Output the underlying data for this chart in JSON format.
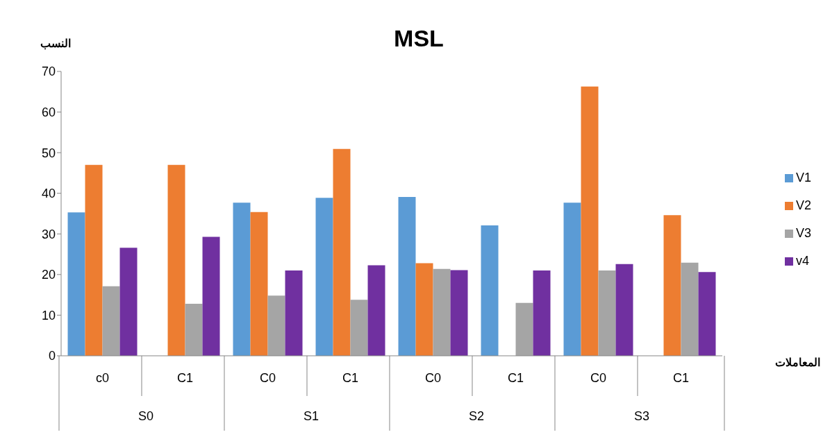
{
  "chart_data": {
    "type": "bar",
    "title": "MSL",
    "ylabel": "النسب",
    "xlabel": "المعاملات",
    "categories": [
      "c0",
      "C1",
      "C0",
      "C1",
      "C0",
      "C1",
      "C0",
      "C1"
    ],
    "annotations": [
      "S0",
      "S1",
      "S2",
      "S3"
    ],
    "series": [
      {
        "name": "V1",
        "color": "#5b9bd5",
        "values": [
          35.3,
          null,
          37.7,
          38.9,
          39.1,
          32.1,
          37.7,
          null
        ]
      },
      {
        "name": "V2",
        "color": "#ed7d31",
        "values": [
          47,
          47,
          35.4,
          50.9,
          22.8,
          null,
          66.3,
          34.6
        ]
      },
      {
        "name": "V3",
        "color": "#a5a5a5",
        "values": [
          17.1,
          12.8,
          14.8,
          13.8,
          21.4,
          13,
          21,
          22.9
        ]
      },
      {
        "name": "v4",
        "color": "#7030a0",
        "values": [
          26.6,
          29.3,
          21,
          22.3,
          21.1,
          21,
          22.6,
          20.6
        ]
      }
    ],
    "ylim": [
      0,
      70
    ],
    "yticks": [
      0,
      10,
      20,
      30,
      40,
      50,
      60,
      70
    ],
    "grid": false,
    "legend": "right"
  }
}
